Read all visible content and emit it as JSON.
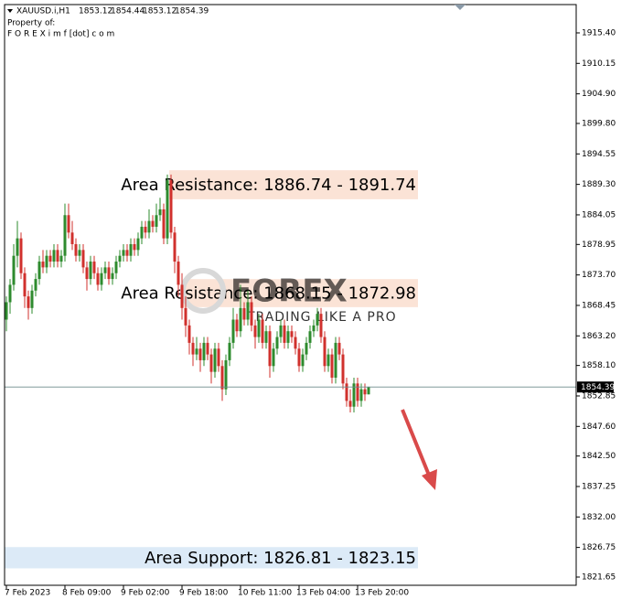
{
  "chart_data": {
    "type": "candlestick",
    "symbol": "XAUUSD.i,H1",
    "owner_label": "Property of:",
    "owner": "F O R E X i m f [dot] c o m",
    "watermark": "FOREX",
    "watermark_tagline": "TRADING LIKE A PRO",
    "up_color": "#2e8b2e",
    "down_color": "#d0312d",
    "ylim": [
      1820.23,
      1920.28
    ],
    "yticks": [
      {
        "value": 1915.4,
        "label": "1915.40"
      },
      {
        "value": 1910.15,
        "label": "1910.15"
      },
      {
        "value": 1904.9,
        "label": "1904.90"
      },
      {
        "value": 1899.8,
        "label": "1899.80"
      },
      {
        "value": 1894.55,
        "label": "1894.55"
      },
      {
        "value": 1889.3,
        "label": "1889.30"
      },
      {
        "value": 1884.05,
        "label": "1884.05"
      },
      {
        "value": 1878.95,
        "label": "1878.95"
      },
      {
        "value": 1873.7,
        "label": "1873.70"
      },
      {
        "value": 1868.45,
        "label": "1868.45"
      },
      {
        "value": 1863.2,
        "label": "1863.20"
      },
      {
        "value": 1858.1,
        "label": "1858.10"
      },
      {
        "value": 1852.85,
        "label": "1852.85"
      },
      {
        "value": 1847.6,
        "label": "1847.60"
      },
      {
        "value": 1842.5,
        "label": "1842.50"
      },
      {
        "value": 1837.25,
        "label": "1837.25"
      },
      {
        "value": 1832.0,
        "label": "1832.00"
      },
      {
        "value": 1826.75,
        "label": "1826.75"
      },
      {
        "value": 1821.65,
        "label": "1821.65"
      }
    ],
    "categories": [
      "7 Feb 2023",
      null,
      null,
      null,
      null,
      null,
      null,
      null,
      null,
      null,
      null,
      null,
      null,
      null,
      null,
      null,
      "8 Feb 09:00",
      null,
      null,
      null,
      null,
      null,
      null,
      null,
      null,
      null,
      null,
      null,
      null,
      null,
      null,
      null,
      "9 Feb 02:00",
      null,
      null,
      null,
      null,
      null,
      null,
      null,
      null,
      null,
      null,
      null,
      null,
      null,
      null,
      null,
      "9 Feb 18:00",
      null,
      null,
      null,
      null,
      null,
      null,
      null,
      null,
      null,
      null,
      null,
      null,
      null,
      null,
      null,
      "10 Feb 11:00",
      null,
      null,
      null,
      null,
      null,
      null,
      null,
      null,
      null,
      null,
      null,
      null,
      null,
      null,
      null,
      "13 Feb 04:00",
      null,
      null,
      null,
      null,
      null,
      null,
      null,
      null,
      null,
      null,
      null,
      null,
      null,
      null,
      null,
      "13 Feb 20:00",
      null,
      null,
      null
    ],
    "ohlc": [
      [
        1866,
        1870,
        1864,
        1869
      ],
      [
        1869,
        1873,
        1867,
        1872
      ],
      [
        1872,
        1879,
        1871,
        1877
      ],
      [
        1877,
        1883,
        1875,
        1880
      ],
      [
        1880,
        1881,
        1873,
        1874
      ],
      [
        1874,
        1875,
        1868,
        1870
      ],
      [
        1870,
        1871,
        1866,
        1868
      ],
      [
        1868,
        1872,
        1867,
        1871
      ],
      [
        1871,
        1874,
        1870,
        1873
      ],
      [
        1873,
        1877,
        1872,
        1876
      ],
      [
        1876,
        1878,
        1874,
        1875
      ],
      [
        1875,
        1878,
        1874,
        1877
      ],
      [
        1877,
        1878,
        1875,
        1876
      ],
      [
        1876,
        1879,
        1875,
        1878
      ],
      [
        1878,
        1879,
        1875,
        1876
      ],
      [
        1876,
        1878,
        1875,
        1877
      ],
      [
        1877,
        1886,
        1876,
        1884
      ],
      [
        1884,
        1886,
        1880,
        1881
      ],
      [
        1881,
        1883,
        1878,
        1879
      ],
      [
        1879,
        1880,
        1876,
        1877
      ],
      [
        1877,
        1879,
        1876,
        1878
      ],
      [
        1878,
        1879,
        1874,
        1875
      ],
      [
        1875,
        1876,
        1871,
        1873
      ],
      [
        1873,
        1877,
        1872,
        1876
      ],
      [
        1876,
        1877,
        1873,
        1874
      ],
      [
        1874,
        1875,
        1871,
        1872
      ],
      [
        1872,
        1875,
        1871,
        1874
      ],
      [
        1874,
        1876,
        1873,
        1875
      ],
      [
        1875,
        1876,
        1872,
        1873
      ],
      [
        1873,
        1875,
        1872,
        1874
      ],
      [
        1874,
        1877,
        1873,
        1876
      ],
      [
        1876,
        1878,
        1875,
        1877
      ],
      [
        1877,
        1879,
        1876,
        1878
      ],
      [
        1878,
        1879,
        1876,
        1877
      ],
      [
        1877,
        1880,
        1876,
        1879
      ],
      [
        1879,
        1880,
        1877,
        1878
      ],
      [
        1878,
        1881,
        1877,
        1880
      ],
      [
        1880,
        1883,
        1879,
        1882
      ],
      [
        1882,
        1883,
        1880,
        1881
      ],
      [
        1881,
        1885,
        1880,
        1883
      ],
      [
        1883,
        1884,
        1881,
        1882
      ],
      [
        1882,
        1886,
        1881,
        1884
      ],
      [
        1884,
        1887,
        1883,
        1885
      ],
      [
        1885,
        1886,
        1879,
        1880
      ],
      [
        1880,
        1891,
        1879,
        1890
      ],
      [
        1890,
        1891,
        1880,
        1881
      ],
      [
        1881,
        1882,
        1874,
        1876
      ],
      [
        1876,
        1877,
        1870,
        1872
      ],
      [
        1872,
        1874,
        1866,
        1868
      ],
      [
        1868,
        1870,
        1863,
        1865
      ],
      [
        1865,
        1866,
        1860,
        1862
      ],
      [
        1862,
        1863,
        1858,
        1860
      ],
      [
        1860,
        1863,
        1859,
        1861
      ],
      [
        1861,
        1862,
        1857,
        1859
      ],
      [
        1859,
        1863,
        1858,
        1862
      ],
      [
        1862,
        1863,
        1859,
        1860
      ],
      [
        1860,
        1861,
        1855,
        1857
      ],
      [
        1857,
        1862,
        1856,
        1861
      ],
      [
        1861,
        1862,
        1857,
        1858
      ],
      [
        1858,
        1859,
        1852,
        1854
      ],
      [
        1854,
        1860,
        1853,
        1859
      ],
      [
        1859,
        1863,
        1858,
        1862
      ],
      [
        1862,
        1868,
        1861,
        1866
      ],
      [
        1866,
        1867,
        1863,
        1864
      ],
      [
        1864,
        1872,
        1863,
        1868
      ],
      [
        1868,
        1869,
        1865,
        1866
      ],
      [
        1866,
        1871,
        1865,
        1869
      ],
      [
        1869,
        1870,
        1864,
        1865
      ],
      [
        1865,
        1866,
        1861,
        1863
      ],
      [
        1863,
        1867,
        1862,
        1866
      ],
      [
        1866,
        1867,
        1861,
        1862
      ],
      [
        1862,
        1865,
        1861,
        1864
      ],
      [
        1864,
        1865,
        1856,
        1858
      ],
      [
        1858,
        1862,
        1857,
        1861
      ],
      [
        1861,
        1864,
        1860,
        1863
      ],
      [
        1863,
        1866,
        1862,
        1865
      ],
      [
        1865,
        1866,
        1861,
        1862
      ],
      [
        1862,
        1865,
        1861,
        1864
      ],
      [
        1864,
        1865,
        1862,
        1863
      ],
      [
        1863,
        1864,
        1860,
        1861
      ],
      [
        1861,
        1862,
        1857,
        1858
      ],
      [
        1858,
        1861,
        1857,
        1860
      ],
      [
        1860,
        1863,
        1859,
        1862
      ],
      [
        1862,
        1865,
        1861,
        1864
      ],
      [
        1864,
        1866,
        1863,
        1865
      ],
      [
        1865,
        1868,
        1864,
        1867
      ],
      [
        1867,
        1868,
        1862,
        1863
      ],
      [
        1863,
        1864,
        1857,
        1858
      ],
      [
        1858,
        1861,
        1857,
        1860
      ],
      [
        1860,
        1861,
        1855,
        1856
      ],
      [
        1856,
        1863,
        1855,
        1862
      ],
      [
        1862,
        1863,
        1859,
        1860
      ],
      [
        1860,
        1861,
        1854,
        1855
      ],
      [
        1855,
        1856,
        1851,
        1852
      ],
      [
        1852,
        1854,
        1850,
        1851
      ],
      [
        1851,
        1856,
        1850,
        1855
      ],
      [
        1855,
        1856,
        1851,
        1852
      ],
      [
        1852,
        1855,
        1851,
        1854
      ],
      [
        1854,
        1855,
        1852,
        1853.12
      ],
      [
        1853.12,
        1854.44,
        1853.12,
        1854.39
      ]
    ],
    "zones": [
      {
        "label": "Area Resistance: 1886.74 - 1891.74",
        "low": 1886.74,
        "high": 1891.74,
        "color": "#fbe3d6"
      },
      {
        "label": "Area Resistance: 1868.15 - 1872.98",
        "low": 1868.15,
        "high": 1872.98,
        "color": "#fbe3d6"
      },
      {
        "label": "Area Support: 1826.81 - 1823.15",
        "low": 1823.15,
        "high": 1826.81,
        "color": "#dceaf7"
      }
    ]
  }
}
